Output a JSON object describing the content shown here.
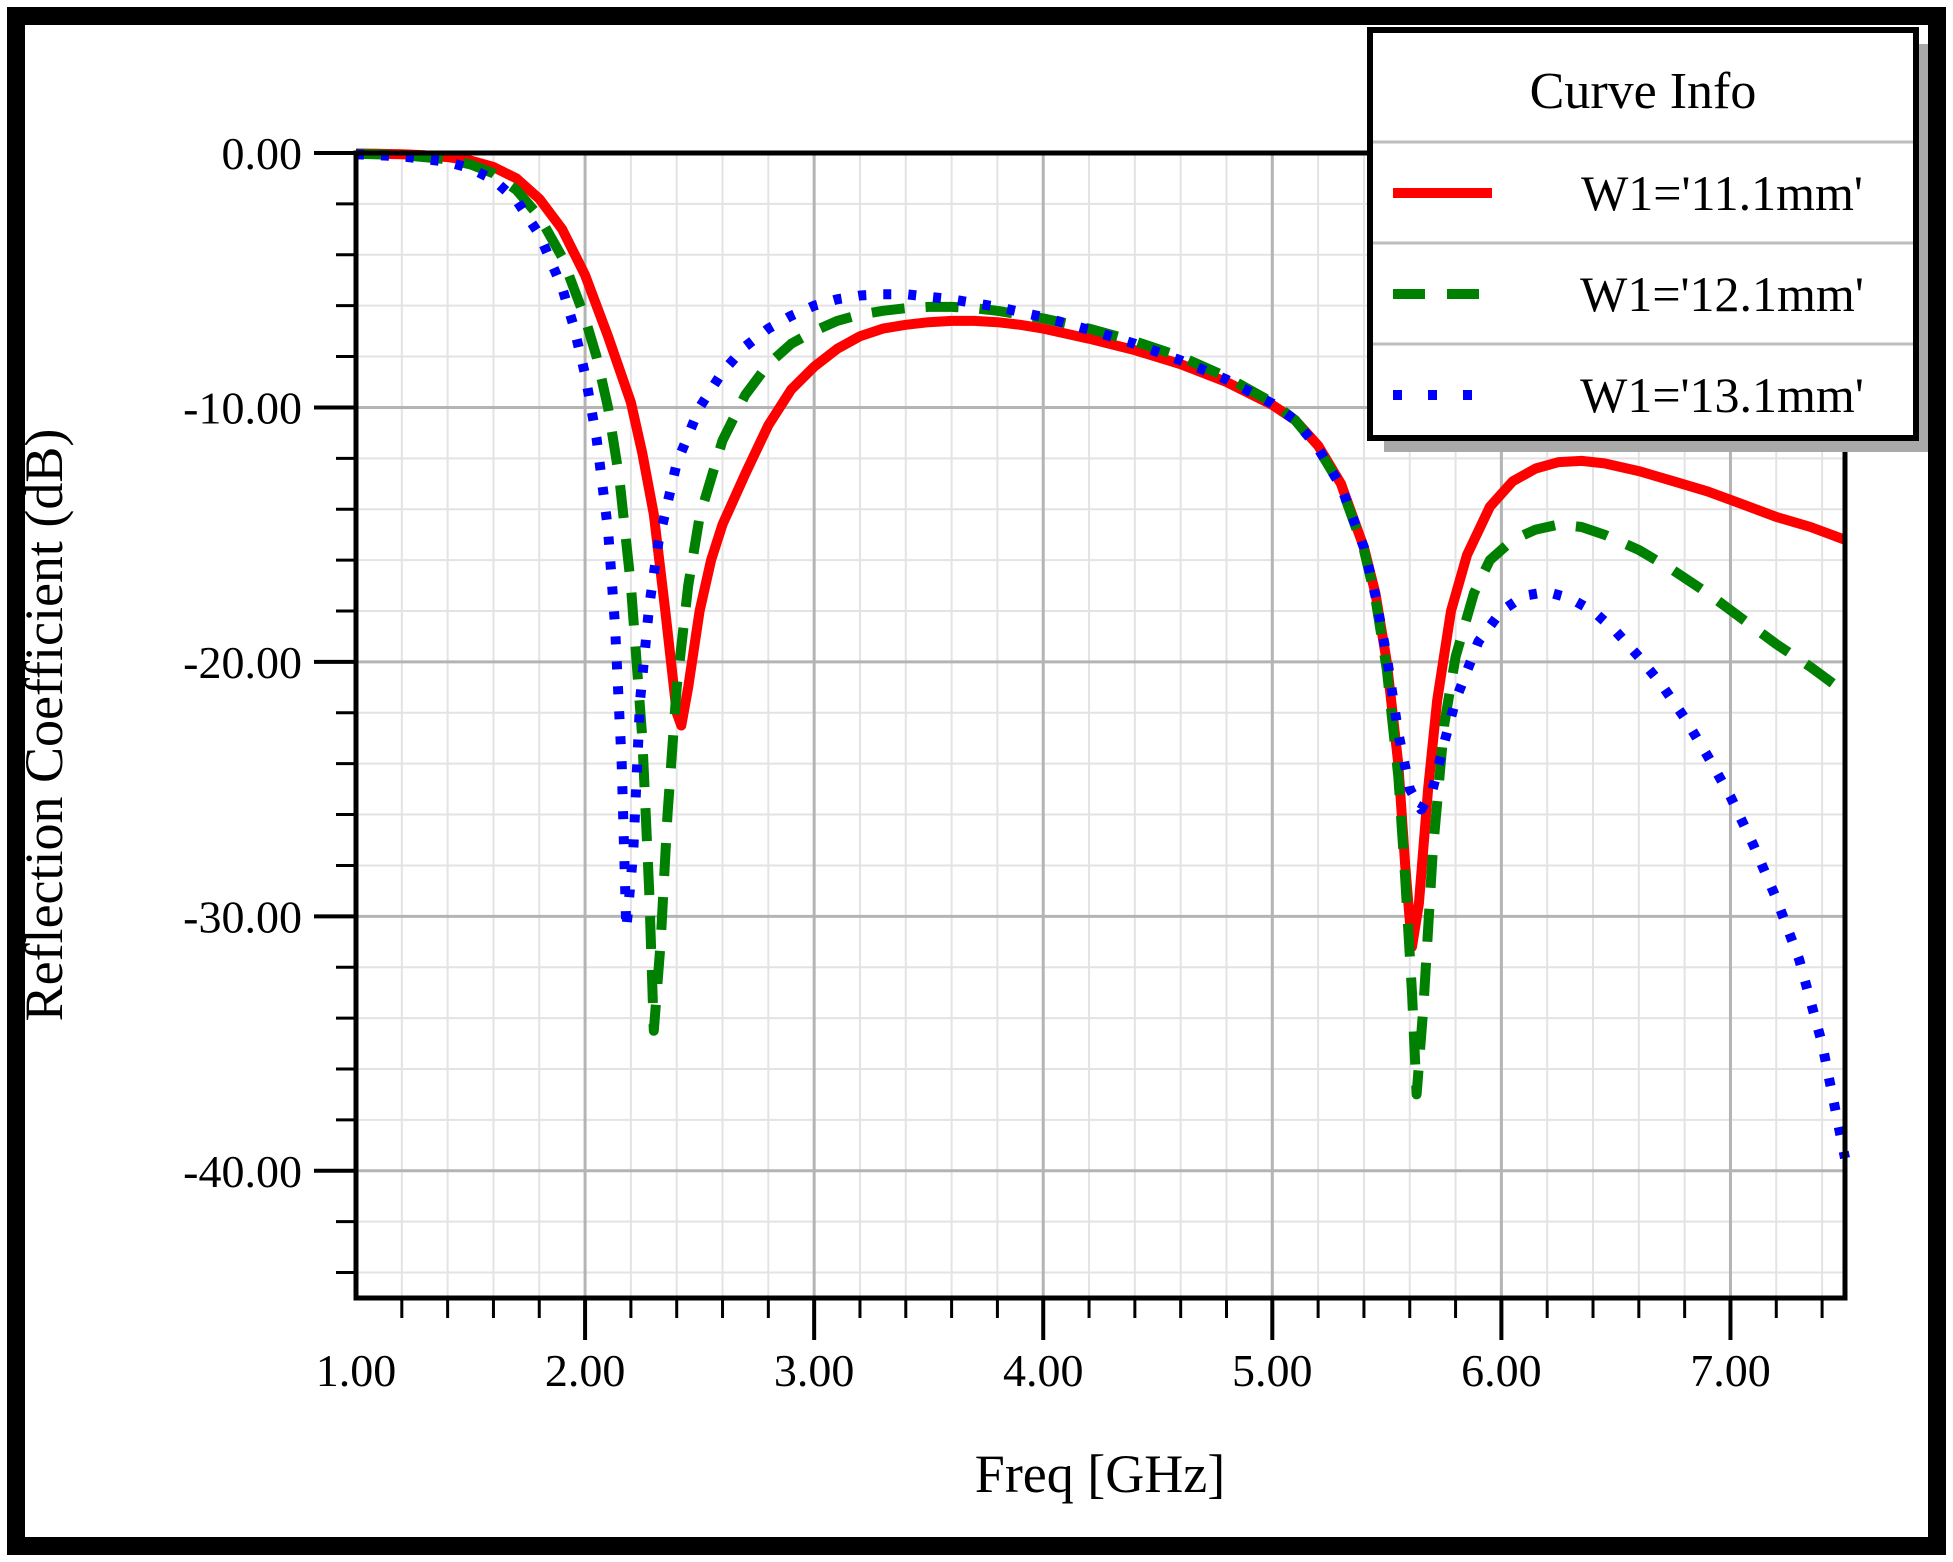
{
  "chart_data": {
    "type": "line",
    "title": "",
    "xlabel": "Freq [GHz]",
    "ylabel": "Reflection Coefficient (dB)",
    "xlim": [
      1.0,
      7.5
    ],
    "ylim": [
      -45,
      0
    ],
    "x_major_ticks": [
      1,
      2,
      3,
      4,
      5,
      6,
      7
    ],
    "x_tick_labels": [
      "1.00",
      "2.00",
      "3.00",
      "4.00",
      "5.00",
      "6.00",
      "7.00"
    ],
    "x_minor_step": 0.2,
    "y_major_ticks": [
      0,
      -10,
      -20,
      -30,
      -40
    ],
    "y_tick_labels": [
      "0.00",
      "-10.00",
      "-20.00",
      "-30.00",
      "-40.00"
    ],
    "y_minor_step": 2,
    "grid": {
      "on": true,
      "minor_color": "#e3e3e3",
      "major_color": "#b4b4b4"
    },
    "frame_color": "#000000",
    "legend": {
      "title": "Curve Info",
      "position": "top-right"
    },
    "series": [
      {
        "name": "W1='11.1mm'",
        "color": "#ff0000",
        "style": "solid",
        "points": [
          [
            1.0,
            -0.02
          ],
          [
            1.1,
            -0.03
          ],
          [
            1.2,
            -0.05
          ],
          [
            1.3,
            -0.09
          ],
          [
            1.4,
            -0.16
          ],
          [
            1.5,
            -0.3
          ],
          [
            1.6,
            -0.55
          ],
          [
            1.7,
            -1.0
          ],
          [
            1.8,
            -1.8
          ],
          [
            1.9,
            -3.0
          ],
          [
            2.0,
            -4.8
          ],
          [
            2.1,
            -7.2
          ],
          [
            2.2,
            -9.8
          ],
          [
            2.25,
            -11.8
          ],
          [
            2.3,
            -14.2
          ],
          [
            2.35,
            -18.0
          ],
          [
            2.4,
            -22.0
          ],
          [
            2.42,
            -22.5
          ],
          [
            2.45,
            -21.0
          ],
          [
            2.5,
            -18.0
          ],
          [
            2.55,
            -16.0
          ],
          [
            2.6,
            -14.6
          ],
          [
            2.7,
            -12.6
          ],
          [
            2.8,
            -10.7
          ],
          [
            2.9,
            -9.3
          ],
          [
            3.0,
            -8.4
          ],
          [
            3.1,
            -7.7
          ],
          [
            3.2,
            -7.2
          ],
          [
            3.3,
            -6.9
          ],
          [
            3.4,
            -6.75
          ],
          [
            3.5,
            -6.65
          ],
          [
            3.6,
            -6.6
          ],
          [
            3.7,
            -6.6
          ],
          [
            3.8,
            -6.65
          ],
          [
            3.9,
            -6.75
          ],
          [
            4.0,
            -6.9
          ],
          [
            4.2,
            -7.3
          ],
          [
            4.4,
            -7.75
          ],
          [
            4.6,
            -8.3
          ],
          [
            4.8,
            -9.0
          ],
          [
            5.0,
            -9.9
          ],
          [
            5.1,
            -10.5
          ],
          [
            5.2,
            -11.5
          ],
          [
            5.3,
            -13.0
          ],
          [
            5.4,
            -15.5
          ],
          [
            5.45,
            -17.3
          ],
          [
            5.5,
            -20.0
          ],
          [
            5.55,
            -24.0
          ],
          [
            5.58,
            -28.0
          ],
          [
            5.61,
            -31.2
          ],
          [
            5.64,
            -29.5
          ],
          [
            5.68,
            -25.0
          ],
          [
            5.72,
            -21.5
          ],
          [
            5.78,
            -18.0
          ],
          [
            5.85,
            -15.8
          ],
          [
            5.95,
            -13.9
          ],
          [
            6.05,
            -12.9
          ],
          [
            6.15,
            -12.4
          ],
          [
            6.25,
            -12.15
          ],
          [
            6.35,
            -12.1
          ],
          [
            6.45,
            -12.2
          ],
          [
            6.6,
            -12.5
          ],
          [
            6.75,
            -12.9
          ],
          [
            6.9,
            -13.3
          ],
          [
            7.05,
            -13.8
          ],
          [
            7.2,
            -14.3
          ],
          [
            7.35,
            -14.7
          ],
          [
            7.5,
            -15.2
          ]
        ]
      },
      {
        "name": "W1='12.1mm'",
        "color": "#008000",
        "style": "dashed",
        "points": [
          [
            1.0,
            -0.03
          ],
          [
            1.2,
            -0.08
          ],
          [
            1.4,
            -0.25
          ],
          [
            1.5,
            -0.45
          ],
          [
            1.6,
            -0.8
          ],
          [
            1.7,
            -1.45
          ],
          [
            1.8,
            -2.5
          ],
          [
            1.9,
            -4.1
          ],
          [
            2.0,
            -6.5
          ],
          [
            2.05,
            -8.0
          ],
          [
            2.1,
            -10.0
          ],
          [
            2.15,
            -12.8
          ],
          [
            2.2,
            -17.0
          ],
          [
            2.25,
            -23.0
          ],
          [
            2.28,
            -29.0
          ],
          [
            2.3,
            -34.5
          ],
          [
            2.33,
            -31.0
          ],
          [
            2.36,
            -26.0
          ],
          [
            2.4,
            -21.0
          ],
          [
            2.45,
            -17.0
          ],
          [
            2.5,
            -14.3
          ],
          [
            2.6,
            -11.3
          ],
          [
            2.7,
            -9.5
          ],
          [
            2.8,
            -8.3
          ],
          [
            2.9,
            -7.5
          ],
          [
            3.0,
            -7.0
          ],
          [
            3.1,
            -6.6
          ],
          [
            3.2,
            -6.35
          ],
          [
            3.3,
            -6.2
          ],
          [
            3.4,
            -6.1
          ],
          [
            3.5,
            -6.05
          ],
          [
            3.6,
            -6.05
          ],
          [
            3.7,
            -6.1
          ],
          [
            3.8,
            -6.2
          ],
          [
            3.9,
            -6.35
          ],
          [
            4.0,
            -6.5
          ],
          [
            4.2,
            -6.9
          ],
          [
            4.4,
            -7.4
          ],
          [
            4.6,
            -8.0
          ],
          [
            4.8,
            -8.8
          ],
          [
            5.0,
            -9.8
          ],
          [
            5.1,
            -10.5
          ],
          [
            5.2,
            -11.6
          ],
          [
            5.3,
            -13.1
          ],
          [
            5.4,
            -15.6
          ],
          [
            5.45,
            -17.5
          ],
          [
            5.5,
            -20.3
          ],
          [
            5.55,
            -24.5
          ],
          [
            5.58,
            -28.5
          ],
          [
            5.61,
            -33.0
          ],
          [
            5.63,
            -37.0
          ],
          [
            5.66,
            -33.5
          ],
          [
            5.7,
            -27.5
          ],
          [
            5.75,
            -22.5
          ],
          [
            5.8,
            -19.8
          ],
          [
            5.88,
            -17.3
          ],
          [
            5.95,
            -16.0
          ],
          [
            6.05,
            -15.2
          ],
          [
            6.15,
            -14.8
          ],
          [
            6.25,
            -14.6
          ],
          [
            6.35,
            -14.7
          ],
          [
            6.45,
            -15.0
          ],
          [
            6.6,
            -15.6
          ],
          [
            6.75,
            -16.4
          ],
          [
            6.9,
            -17.3
          ],
          [
            7.05,
            -18.3
          ],
          [
            7.2,
            -19.3
          ],
          [
            7.35,
            -20.2
          ],
          [
            7.5,
            -21.2
          ]
        ]
      },
      {
        "name": "W1='13.1mm'",
        "color": "#0000ff",
        "style": "dotted",
        "points": [
          [
            1.0,
            -0.05
          ],
          [
            1.2,
            -0.13
          ],
          [
            1.4,
            -0.35
          ],
          [
            1.5,
            -0.6
          ],
          [
            1.6,
            -1.05
          ],
          [
            1.7,
            -1.85
          ],
          [
            1.8,
            -3.2
          ],
          [
            1.9,
            -5.3
          ],
          [
            1.95,
            -6.8
          ],
          [
            2.0,
            -8.7
          ],
          [
            2.05,
            -11.2
          ],
          [
            2.1,
            -14.8
          ],
          [
            2.13,
            -18.5
          ],
          [
            2.16,
            -24.0
          ],
          [
            2.18,
            -30.5
          ],
          [
            2.21,
            -27.5
          ],
          [
            2.24,
            -21.5
          ],
          [
            2.28,
            -17.8
          ],
          [
            2.32,
            -15.3
          ],
          [
            2.4,
            -12.2
          ],
          [
            2.5,
            -10.0
          ],
          [
            2.6,
            -8.6
          ],
          [
            2.7,
            -7.6
          ],
          [
            2.8,
            -6.9
          ],
          [
            2.9,
            -6.4
          ],
          [
            3.0,
            -6.0
          ],
          [
            3.1,
            -5.75
          ],
          [
            3.2,
            -5.6
          ],
          [
            3.3,
            -5.55
          ],
          [
            3.4,
            -5.55
          ],
          [
            3.5,
            -5.65
          ],
          [
            3.6,
            -5.75
          ],
          [
            3.7,
            -5.9
          ],
          [
            3.8,
            -6.05
          ],
          [
            3.9,
            -6.25
          ],
          [
            4.0,
            -6.45
          ],
          [
            4.2,
            -6.95
          ],
          [
            4.4,
            -7.5
          ],
          [
            4.6,
            -8.15
          ],
          [
            4.8,
            -8.9
          ],
          [
            5.0,
            -9.85
          ],
          [
            5.1,
            -10.5
          ],
          [
            5.2,
            -11.6
          ],
          [
            5.3,
            -13.1
          ],
          [
            5.4,
            -15.5
          ],
          [
            5.45,
            -17.4
          ],
          [
            5.5,
            -19.8
          ],
          [
            5.55,
            -22.8
          ],
          [
            5.6,
            -25.0
          ],
          [
            5.65,
            -25.8
          ],
          [
            5.7,
            -25.0
          ],
          [
            5.75,
            -23.2
          ],
          [
            5.8,
            -21.5
          ],
          [
            5.9,
            -19.2
          ],
          [
            6.0,
            -18.0
          ],
          [
            6.1,
            -17.4
          ],
          [
            6.2,
            -17.25
          ],
          [
            6.3,
            -17.5
          ],
          [
            6.4,
            -18.0
          ],
          [
            6.5,
            -18.8
          ],
          [
            6.6,
            -19.8
          ],
          [
            6.7,
            -20.9
          ],
          [
            6.8,
            -22.2
          ],
          [
            6.9,
            -23.7
          ],
          [
            7.0,
            -25.3
          ],
          [
            7.1,
            -27.2
          ],
          [
            7.2,
            -29.3
          ],
          [
            7.3,
            -31.7
          ],
          [
            7.4,
            -35.0
          ],
          [
            7.5,
            -39.5
          ]
        ]
      }
    ]
  }
}
